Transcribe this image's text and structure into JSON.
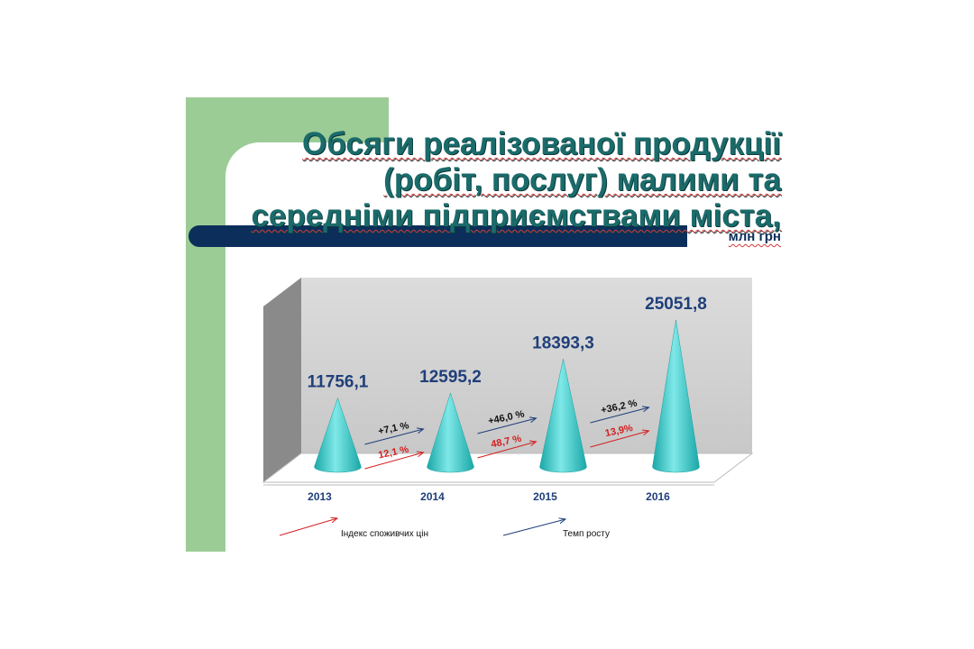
{
  "title_lines": [
    "Обсяги реалізованої продукції",
    "(робіт, послуг) малими та",
    "середніми підприємствами міста,"
  ],
  "subtitle": "млн грн",
  "colors": {
    "accent_green": "#9ccc96",
    "navy": "#0b2f5a",
    "cone": "#3cc7c7",
    "red": "#d42020",
    "blue": "#1f3f7a"
  },
  "chart_data": {
    "type": "bar",
    "categories": [
      "2013",
      "2014",
      "2015",
      "2016"
    ],
    "values": [
      11756.1,
      12595.2,
      18393.3,
      25051.8
    ],
    "value_labels": [
      "11756,1",
      "12595,2",
      "18393,3",
      "25051,8"
    ],
    "series": [
      {
        "name": "Індекс споживчих цін",
        "labels": [
          "12,1 %",
          "48,7 %",
          "13,9%"
        ]
      },
      {
        "name": "Темп росту",
        "labels": [
          "+7,1 %",
          "+46,0 %",
          "+36,2 %"
        ]
      }
    ],
    "ylim": [
      0,
      27000
    ],
    "grid": false,
    "legend": "bottom"
  }
}
